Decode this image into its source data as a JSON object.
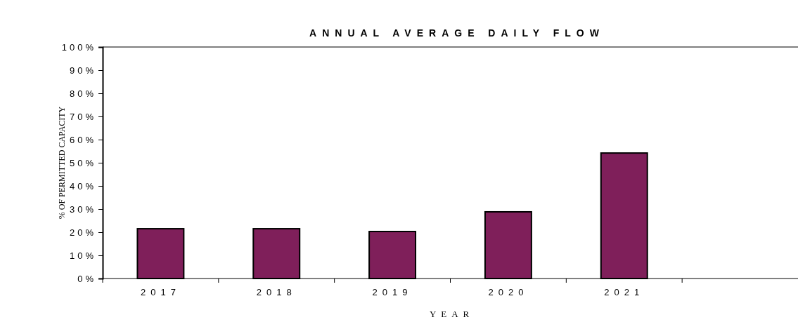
{
  "chart_data": {
    "type": "bar",
    "title": "ANNUAL AVERAGE DAILY FLOW",
    "xlabel": "YEAR",
    "ylabel": "% OF PERMITTED CAPACITY",
    "categories": [
      "2017",
      "2018",
      "2019",
      "2020",
      "2021",
      null
    ],
    "values": [
      21.5,
      21.5,
      20.3,
      28.8,
      54.2,
      null
    ],
    "color": "#7f1f5a",
    "ylim": [
      0,
      100
    ],
    "yticks": [
      {
        "value": 0,
        "label": "0%"
      },
      {
        "value": 10,
        "label": "10%"
      },
      {
        "value": 20,
        "label": "20%"
      },
      {
        "value": 30,
        "label": "30%"
      },
      {
        "value": 40,
        "label": "40%"
      },
      {
        "value": 50,
        "label": "50%"
      },
      {
        "value": 60,
        "label": "60%"
      },
      {
        "value": 70,
        "label": "70%"
      },
      {
        "value": 80,
        "label": "80%"
      },
      {
        "value": 90,
        "label": "90%"
      },
      {
        "value": 100,
        "label": "100%"
      }
    ],
    "grid": false
  }
}
